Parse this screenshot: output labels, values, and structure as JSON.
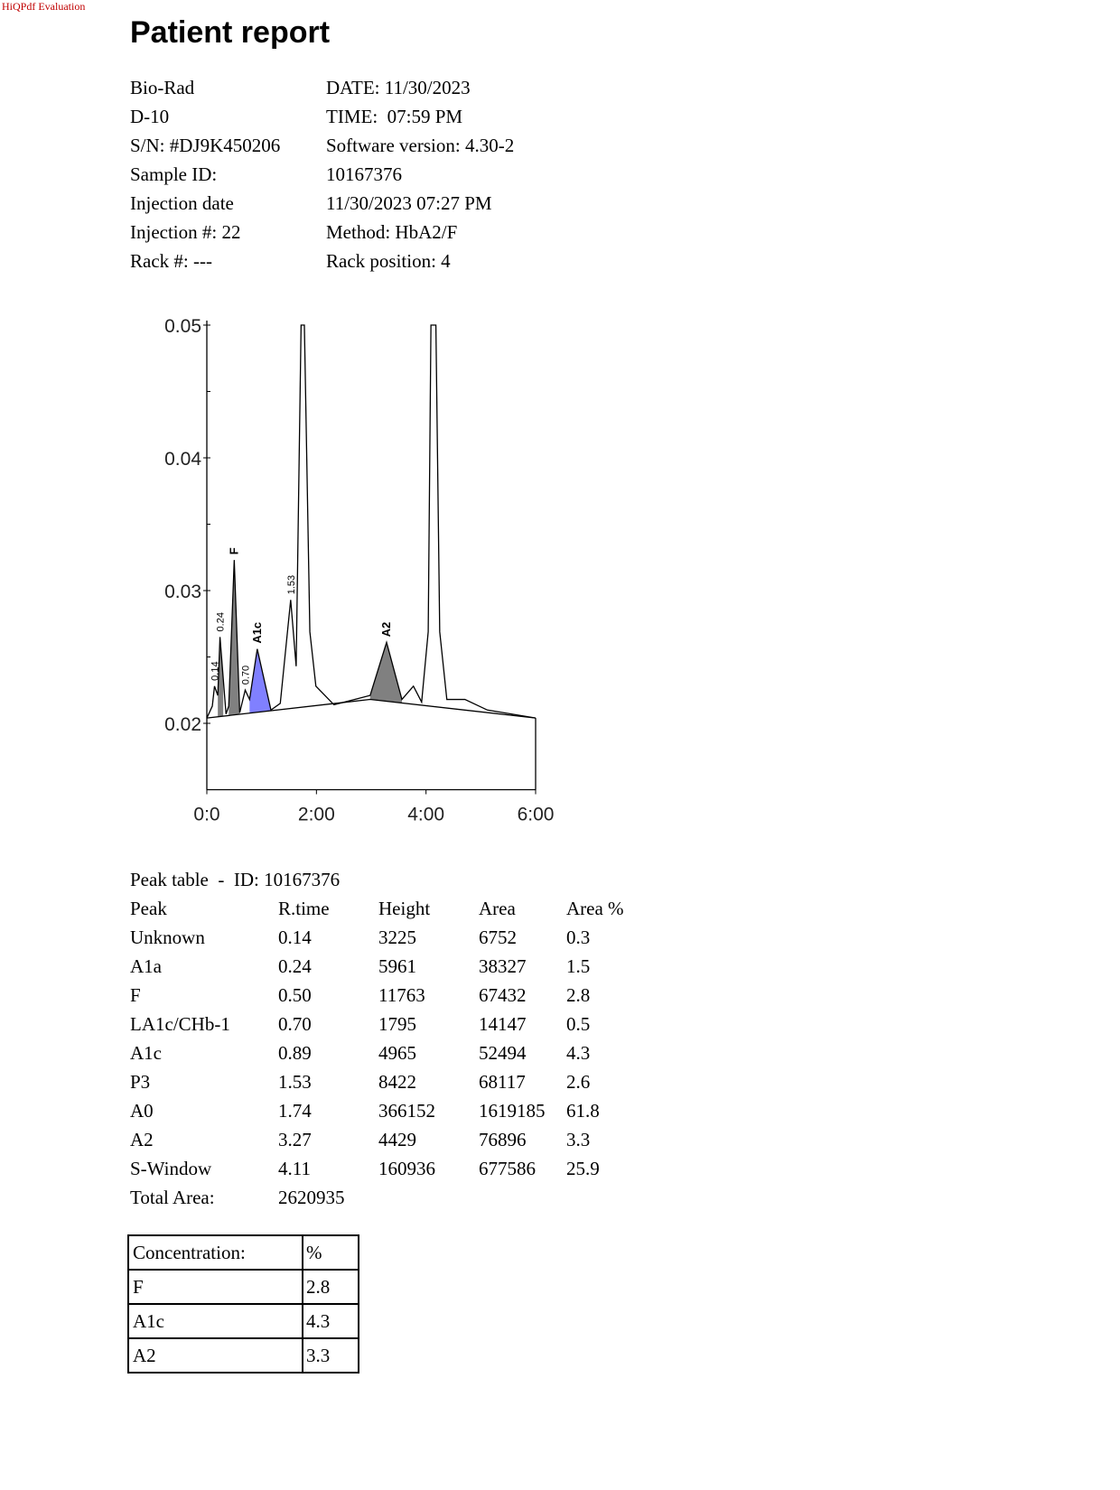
{
  "watermark": "HiQPdf Evaluation",
  "header": {
    "title": "Patient report"
  },
  "info": [
    [
      "Bio-Rad",
      "DATE: 11/30/2023"
    ],
    [
      "D-10",
      "TIME:  07:59 PM"
    ],
    [
      "S/N: #DJ9K450206",
      "Software version: 4.30-2"
    ],
    [
      "Sample ID:",
      "10167376"
    ],
    [
      "Injection date",
      "11/30/2023 07:27 PM"
    ],
    [
      "Injection #: 22",
      "Method: HbA2/F"
    ],
    [
      "Rack #: ---",
      "Rack position: 4"
    ]
  ],
  "chart_data": {
    "type": "line",
    "x": [
      0,
      0.1,
      0.14,
      0.2,
      0.24,
      0.35,
      0.4,
      0.5,
      0.6,
      0.7,
      0.78,
      0.92,
      1.17,
      1.34,
      1.53,
      1.63,
      1.72,
      1.78,
      1.88,
      1.99,
      2.32,
      2.98,
      3.28,
      3.56,
      3.77,
      3.92,
      4.04,
      4.09,
      4.18,
      4.25,
      4.38,
      4.71,
      5.12,
      6.0
    ],
    "values": [
      0.0204,
      0.0213,
      0.0228,
      0.0221,
      0.0265,
      0.0207,
      0.0213,
      0.0323,
      0.0208,
      0.0225,
      0.0218,
      0.0256,
      0.021,
      0.0215,
      0.0293,
      0.0243,
      0.05,
      0.05,
      0.0269,
      0.0228,
      0.0214,
      0.0221,
      0.0261,
      0.0218,
      0.0228,
      0.0216,
      0.0269,
      0.05,
      0.05,
      0.0269,
      0.0218,
      0.0218,
      0.021,
      0.0204
    ],
    "color": "#000000",
    "baseline": {
      "x": [
        0,
        2.98,
        6.0
      ],
      "values": [
        0.0204,
        0.0218,
        0.0204
      ]
    },
    "shaded": [
      {
        "from": 0.2,
        "to": 0.3,
        "color": "#808080"
      },
      {
        "from": 0.4,
        "to": 0.6,
        "color": "#808080"
      },
      {
        "from": 0.78,
        "to": 1.17,
        "color": "#8080ff"
      },
      {
        "from": 2.98,
        "to": 3.56,
        "color": "#808080"
      }
    ],
    "annotations": [
      {
        "text": "0.14",
        "x": 0.14
      },
      {
        "text": "0.24",
        "x": 0.24
      },
      {
        "text": "F",
        "x": 0.5
      },
      {
        "text": "0.70",
        "x": 0.7
      },
      {
        "text": "A1c",
        "x": 0.92
      },
      {
        "text": "1.53",
        "x": 1.53
      },
      {
        "text": "A2",
        "x": 3.28
      }
    ],
    "xlim": [
      0,
      6
    ],
    "xticks": [
      {
        "value": 0,
        "label": "0:0"
      },
      {
        "value": 2,
        "label": "2:00"
      },
      {
        "value": 4,
        "label": "4:00"
      },
      {
        "value": 6,
        "label": "6:00"
      }
    ],
    "ylim": [
      0.015,
      0.05
    ],
    "yticks": [
      0.02,
      0.03,
      0.04,
      0.05
    ],
    "yminorticks": [
      0.025,
      0.035,
      0.045
    ]
  },
  "peak_table": {
    "title": "Peak table  -  ID: 10167376",
    "header": [
      "Peak",
      "R.time",
      "Height",
      "Area",
      "Area %"
    ],
    "rows": [
      [
        "Unknown",
        "0.14",
        "3225",
        "6752",
        "0.3"
      ],
      [
        "A1a",
        "0.24",
        "5961",
        "38327",
        "1.5"
      ],
      [
        "F",
        "0.50",
        "11763",
        "67432",
        "2.8"
      ],
      [
        "LA1c/CHb-1",
        "0.70",
        "1795",
        "14147",
        "0.5"
      ],
      [
        "A1c",
        "0.89",
        "4965",
        "52494",
        "4.3"
      ],
      [
        "P3",
        "1.53",
        "8422",
        "68117",
        "2.6"
      ],
      [
        "A0",
        "1.74",
        "366152",
        "1619185",
        "61.8"
      ],
      [
        "A2",
        "3.27",
        "4429",
        "76896",
        "3.3"
      ],
      [
        "S-Window",
        "4.11",
        "160936",
        "677586",
        "25.9"
      ]
    ],
    "total": [
      "Total Area:",
      "2620935"
    ]
  },
  "concentration_table": {
    "header": [
      "Concentration:",
      "%"
    ],
    "rows": [
      [
        "F",
        "2.8"
      ],
      [
        "A1c",
        "4.3"
      ],
      [
        "A2",
        "3.3"
      ]
    ]
  }
}
